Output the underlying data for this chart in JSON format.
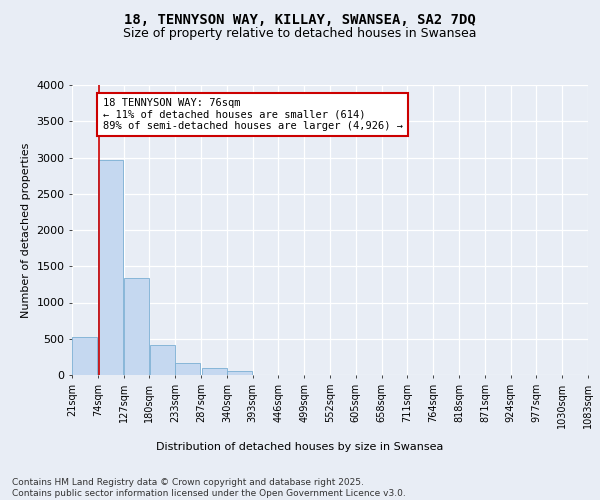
{
  "title1": "18, TENNYSON WAY, KILLAY, SWANSEA, SA2 7DQ",
  "title2": "Size of property relative to detached houses in Swansea",
  "xlabel": "Distribution of detached houses by size in Swansea",
  "ylabel": "Number of detached properties",
  "bins": [
    "21sqm",
    "74sqm",
    "127sqm",
    "180sqm",
    "233sqm",
    "287sqm",
    "340sqm",
    "393sqm",
    "446sqm",
    "499sqm",
    "552sqm",
    "605sqm",
    "658sqm",
    "711sqm",
    "764sqm",
    "818sqm",
    "871sqm",
    "924sqm",
    "977sqm",
    "1030sqm",
    "1083sqm"
  ],
  "bin_edges": [
    21,
    74,
    127,
    180,
    233,
    287,
    340,
    393,
    446,
    499,
    552,
    605,
    658,
    711,
    764,
    818,
    871,
    924,
    977,
    1030,
    1083
  ],
  "values": [
    530,
    2970,
    1340,
    410,
    170,
    90,
    55,
    0,
    0,
    0,
    0,
    0,
    0,
    0,
    0,
    0,
    0,
    0,
    0,
    0
  ],
  "bar_color": "#c5d8f0",
  "bar_edge_color": "#7bafd4",
  "property_line_x": 76,
  "property_line_color": "#cc0000",
  "annotation_text": "18 TENNYSON WAY: 76sqm\n← 11% of detached houses are smaller (614)\n89% of semi-detached houses are larger (4,926) →",
  "annotation_box_color": "#ffffff",
  "annotation_box_edge_color": "#cc0000",
  "ylim": [
    0,
    4000
  ],
  "yticks": [
    0,
    500,
    1000,
    1500,
    2000,
    2500,
    3000,
    3500,
    4000
  ],
  "background_color": "#e8edf5",
  "plot_background_color": "#e8edf5",
  "grid_color": "#ffffff",
  "footnote": "Contains HM Land Registry data © Crown copyright and database right 2025.\nContains public sector information licensed under the Open Government Licence v3.0.",
  "title_fontsize": 10,
  "subtitle_fontsize": 9,
  "annotation_fontsize": 7.5,
  "footnote_fontsize": 6.5,
  "ylabel_fontsize": 8,
  "xlabel_fontsize": 8,
  "ytick_fontsize": 8,
  "xtick_fontsize": 7
}
